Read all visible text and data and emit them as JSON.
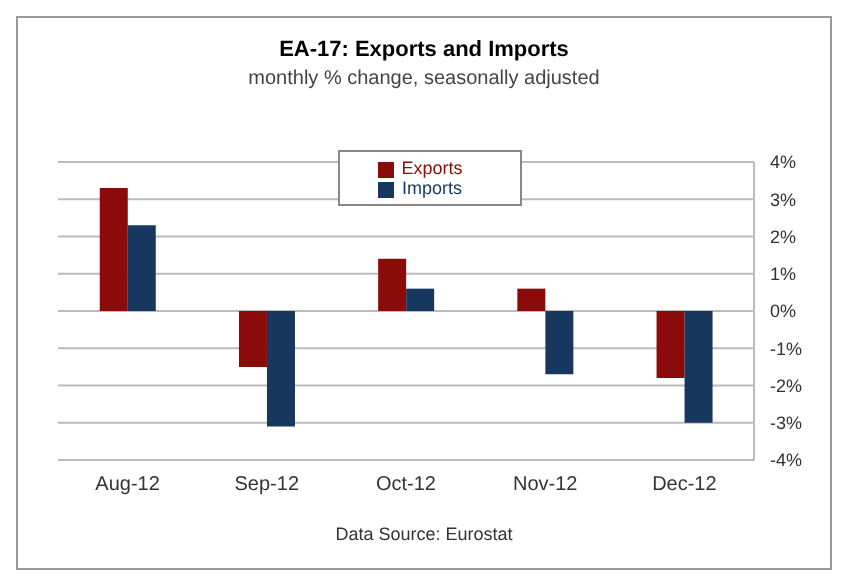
{
  "chart_data": {
    "type": "bar",
    "title": "EA-17: Exports and Imports",
    "subtitle": "monthly % change, seasonally adjusted",
    "annotations": [
      "Data Source: Eurostat"
    ],
    "categories": [
      "Aug-12",
      "Sep-12",
      "Oct-12",
      "Nov-12",
      "Dec-12"
    ],
    "series": [
      {
        "name": "Exports",
        "color": "#8b0a0a",
        "values": [
          3.3,
          -1.5,
          1.4,
          0.6,
          -1.8
        ]
      },
      {
        "name": "Imports",
        "color": "#17375e",
        "values": [
          2.3,
          -3.1,
          0.6,
          -1.7,
          -3.0
        ]
      }
    ],
    "ylim": [
      -4,
      4
    ],
    "yticks": [
      {
        "value": -4,
        "label": "-4%"
      },
      {
        "value": -3,
        "label": "-3%"
      },
      {
        "value": -2,
        "label": "-2%"
      },
      {
        "value": -1,
        "label": "-1%"
      },
      {
        "value": 0,
        "label": "0%"
      },
      {
        "value": 1,
        "label": "1%"
      },
      {
        "value": 2,
        "label": "2%"
      },
      {
        "value": 3,
        "label": "3%"
      },
      {
        "value": 4,
        "label": "4%"
      }
    ],
    "grid": "y",
    "legend": "top"
  }
}
